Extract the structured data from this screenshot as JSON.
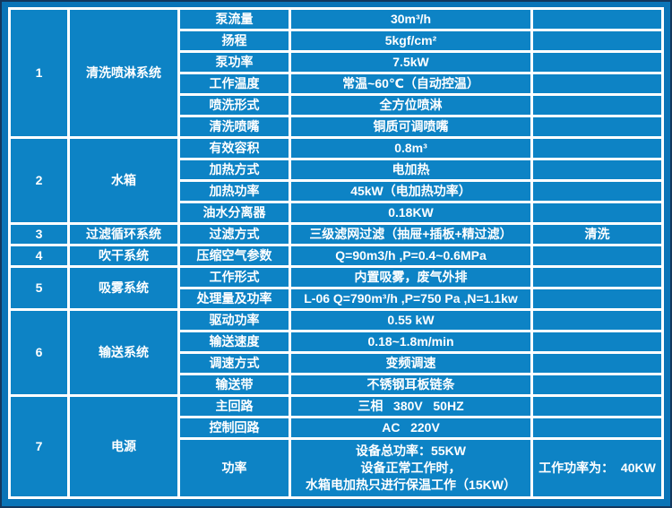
{
  "theme": {
    "edge_color": "#14375d",
    "frame_background": "#0a74b7",
    "cell_background": "#0d83c5",
    "grid_line_color": "#ffffff",
    "text_color": "#ffffff"
  },
  "table": {
    "sections": [
      {
        "no": "1",
        "system": "清洗喷淋系统",
        "rows": [
          {
            "param": "泵流量",
            "value": "30m³/h",
            "note": ""
          },
          {
            "param": "扬程",
            "value": "5kgf/cm²",
            "note": ""
          },
          {
            "param": "泵功率",
            "value": "7.5kW",
            "note": ""
          },
          {
            "param": "工作温度",
            "value": "常温~60℃（自动控温）",
            "note": ""
          },
          {
            "param": "喷洗形式",
            "value": "全方位喷淋",
            "note": ""
          },
          {
            "param": "清洗喷嘴",
            "value": "铜质可调喷嘴",
            "note": ""
          }
        ]
      },
      {
        "no": "2",
        "system": "水箱",
        "rows": [
          {
            "param": "有效容积",
            "value": "0.8m³",
            "note": ""
          },
          {
            "param": "加热方式",
            "value": "电加热",
            "note": ""
          },
          {
            "param": "加热功率",
            "value": "45kW（电加热功率）",
            "note": ""
          },
          {
            "param": "油水分离器",
            "value": "0.18KW",
            "note": ""
          }
        ]
      },
      {
        "no": "3",
        "system": "过滤循环系统",
        "rows": [
          {
            "param": "过滤方式",
            "value": "三级滤网过滤（抽屉+插板+精过滤）",
            "note": "清洗"
          }
        ]
      },
      {
        "no": "4",
        "system": "吹干系统",
        "rows": [
          {
            "param": "压缩空气参数",
            "value": "Q=90m3/h ,P=0.4~0.6MPa",
            "note": ""
          }
        ]
      },
      {
        "no": "5",
        "system": "吸雾系统",
        "rows": [
          {
            "param": "工作形式",
            "value": "内置吸雾，废气外排",
            "note": ""
          },
          {
            "param": "处理量及功率",
            "value": "L-06 Q=790m³/h ,P=750 Pa ,N=1.1kw",
            "note": ""
          }
        ]
      },
      {
        "no": "6",
        "system": "输送系统",
        "rows": [
          {
            "param": "驱动功率",
            "value": "0.55 kW",
            "note": ""
          },
          {
            "param": "输送速度",
            "value": "0.18~1.8m/min",
            "note": ""
          },
          {
            "param": "调速方式",
            "value": "变频调速",
            "note": ""
          },
          {
            "param": "输送带",
            "value": "不锈钢耳板链条",
            "note": ""
          }
        ]
      },
      {
        "no": "7",
        "system": "电源",
        "rows": [
          {
            "param": "主回路",
            "value": "三相   380V   50HZ",
            "note": ""
          },
          {
            "param": "控制回路",
            "value": "AC   220V",
            "note": ""
          },
          {
            "param": "功率",
            "value": "设备总功率：55KW\n设备正常工作时，\n水箱电加热只进行保温工作（15KW）",
            "note": "工作功率为：  40KW",
            "tall": true
          }
        ]
      }
    ]
  }
}
